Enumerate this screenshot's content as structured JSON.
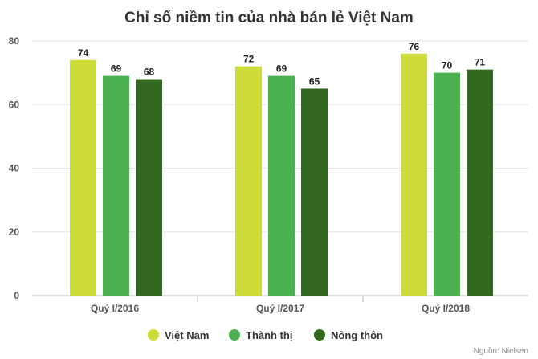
{
  "chart_data": {
    "type": "bar",
    "title": "Chỉ số niềm tin của nhà bán lẻ Việt Nam",
    "categories": [
      "Quý I/2016",
      "Quý I/2017",
      "Quý I/2018"
    ],
    "series": [
      {
        "name": "Việt Nam",
        "color": "#cddc39",
        "values": [
          74,
          72,
          76
        ]
      },
      {
        "name": "Thành thị",
        "color": "#4caf50",
        "values": [
          69,
          69,
          70
        ]
      },
      {
        "name": "Nông thôn",
        "color": "#33691e",
        "values": [
          68,
          65,
          71
        ]
      }
    ],
    "yticks": [
      0,
      20,
      40,
      60,
      80
    ],
    "ylim": [
      0,
      80
    ],
    "grid": true,
    "legend": "bottom-center",
    "source": "Nguồn: Nielsen"
  }
}
